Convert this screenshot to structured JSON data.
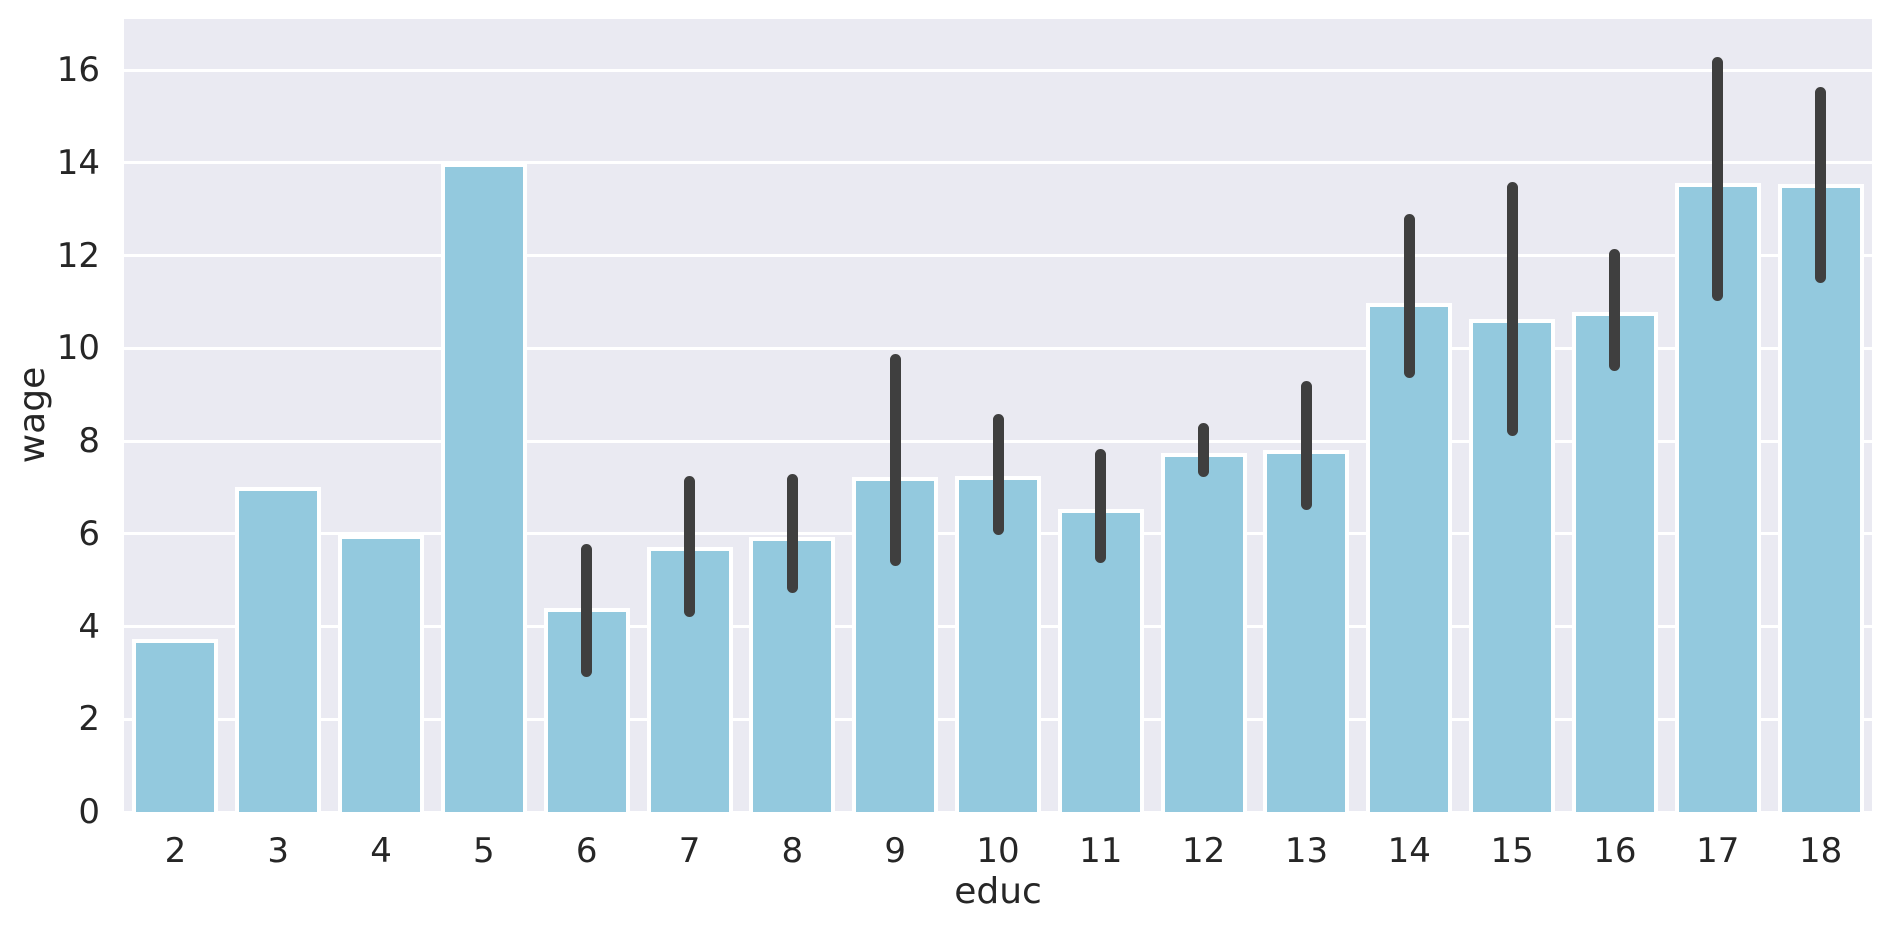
{
  "chart_data": {
    "type": "bar",
    "title": "",
    "xlabel": "educ",
    "ylabel": "wage",
    "categories": [
      2,
      3,
      4,
      5,
      6,
      7,
      8,
      9,
      10,
      11,
      12,
      13,
      14,
      15,
      16,
      17,
      18
    ],
    "values": [
      3.73,
      7.0,
      5.97,
      14.0,
      4.39,
      5.72,
      5.92,
      7.23,
      7.25,
      6.54,
      7.74,
      7.81,
      10.98,
      10.64,
      10.79,
      13.56,
      13.54
    ],
    "error_low": [
      null,
      null,
      null,
      null,
      3.0,
      4.3,
      4.8,
      5.4,
      6.05,
      5.45,
      7.3,
      6.6,
      9.45,
      8.2,
      9.6,
      11.1,
      11.5
    ],
    "error_high": [
      null,
      null,
      null,
      null,
      5.7,
      7.15,
      7.2,
      9.8,
      8.5,
      7.75,
      8.3,
      9.2,
      12.8,
      13.5,
      12.05,
      16.2,
      15.55
    ],
    "yticks": [
      0,
      2,
      4,
      6,
      8,
      10,
      12,
      14,
      16
    ],
    "ylim": [
      0,
      17.1
    ],
    "legend": null,
    "grid": {
      "axis": "y"
    },
    "colors": {
      "bar_fill": "#93C9DE",
      "bar_edge": "#FFFFFF",
      "error_bar": "#3F3F3F",
      "plot_background": "#EAEAF2",
      "gridline": "#FFFFFF",
      "text": "#262626",
      "figure_background": "#FFFFFF"
    }
  }
}
